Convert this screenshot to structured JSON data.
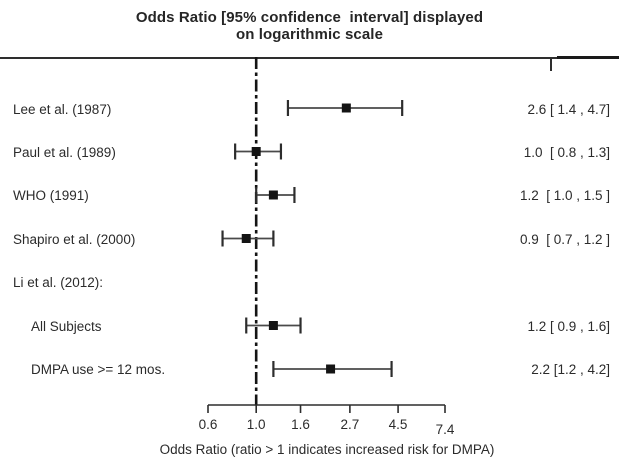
{
  "chart_data": {
    "type": "scatter",
    "subtype": "forest-plot",
    "title": "Odds Ratio [95% confidence  interval] displayed\non logarithmic scale",
    "xlabel": "Odds Ratio (ratio > 1 indicates increased risk for DMPA)",
    "x_scale": "log",
    "x_range": [
      0.6,
      7.4
    ],
    "reference_line": 1.0,
    "x_ticks": [
      {
        "label": "0.6",
        "value": 0.6
      },
      {
        "label": "1.0",
        "value": 1.0
      },
      {
        "label": "1.6",
        "value": 1.6
      },
      {
        "label": "2.7",
        "value": 2.7
      },
      {
        "label": "4.5",
        "value": 4.5
      },
      {
        "label": "7.4",
        "value": 7.4
      }
    ],
    "studies": [
      {
        "label": "Lee et al. (1987)",
        "or": 2.6,
        "ci_low": 1.4,
        "ci_high": 4.7,
        "result": "2.6 [ 1.4 , 4.7]",
        "indent": false
      },
      {
        "label": "Paul et al. (1989)",
        "or": 1.0,
        "ci_low": 0.8,
        "ci_high": 1.3,
        "result": "1.0  [ 0.8 , 1.3]",
        "indent": false
      },
      {
        "label": "WHO (1991)",
        "or": 1.2,
        "ci_low": 1.0,
        "ci_high": 1.5,
        "result": "1.2  [ 1.0 , 1.5 ]",
        "indent": false
      },
      {
        "label": "Shapiro et al. (2000)",
        "or": 0.9,
        "ci_low": 0.7,
        "ci_high": 1.2,
        "result": "0.9  [ 0.7 , 1.2 ]",
        "indent": false
      },
      {
        "label": "Li et al. (2012):",
        "or": null,
        "ci_low": null,
        "ci_high": null,
        "result": null,
        "indent": false
      },
      {
        "label": "All Subjects",
        "or": 1.2,
        "ci_low": 0.9,
        "ci_high": 1.6,
        "result": "1.2 [ 0.9 , 1.6]",
        "indent": true
      },
      {
        "label": "DMPA use >= 12 mos.",
        "or": 2.2,
        "ci_low": 1.2,
        "ci_high": 4.2,
        "result": "2.2 [1.2 , 4.2]",
        "indent": true
      }
    ],
    "colors": {
      "text": "#2b2b2b",
      "axis_line": "#2d2d2d",
      "ci_line": "#4a4a4a",
      "ci_cap": "#2d2d2d",
      "marker": "#141414",
      "reference_line": "#141414"
    }
  }
}
